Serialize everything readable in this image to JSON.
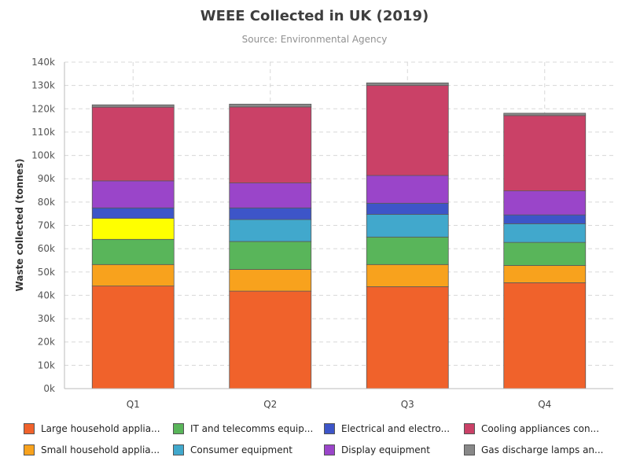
{
  "chart_data": {
    "type": "bar",
    "stacked": true,
    "title": "WEEE Collected in UK (2019)",
    "subtitle": "Source: Environmental Agency",
    "xlabel": "",
    "ylabel": "Waste collected (tonnes)",
    "ylim": [
      0,
      140000
    ],
    "yticks": [
      "0k",
      "10k",
      "20k",
      "30k",
      "40k",
      "50k",
      "60k",
      "70k",
      "80k",
      "90k",
      "100k",
      "110k",
      "120k",
      "130k",
      "140k"
    ],
    "grid": true,
    "legend_position": "bottom",
    "categories": [
      "Q1",
      "Q2",
      "Q3",
      "Q4"
    ],
    "series": [
      {
        "name": "Large household applia...",
        "color": "#f0622b",
        "values": [
          44000,
          41800,
          43700,
          45400
        ]
      },
      {
        "name": "Small household applia...",
        "color": "#f8a21d",
        "values": [
          9200,
          9300,
          9500,
          7400
        ]
      },
      {
        "name": "IT and telecomms equip...",
        "color": "#59b55a",
        "values": [
          10800,
          12000,
          11800,
          9900
        ]
      },
      {
        "name": "Consumer equipment",
        "color": "#41a8cc",
        "values": [
          0,
          9400,
          9700,
          8000
        ]
      },
      {
        "name": "Electrical and electro...",
        "color": "#ffff00",
        "values": [
          9000,
          0,
          0,
          0
        ]
      },
      {
        "name": "Electrical and electro...",
        "color": "#3d55c8",
        "values": [
          4500,
          5000,
          4800,
          3800
        ]
      },
      {
        "name": "Display equipment",
        "color": "#9a45c9",
        "values": [
          11600,
          10700,
          11900,
          10300
        ]
      },
      {
        "name": "Cooling appliances con...",
        "color": "#ca4167",
        "values": [
          31600,
          32600,
          38600,
          32300
        ]
      },
      {
        "name": "Gas discharge lamps an...",
        "color": "#888888",
        "values": [
          1000,
          1200,
          1100,
          1000
        ]
      }
    ],
    "legend": [
      {
        "label": "Large household applia...",
        "color": "#f0622b"
      },
      {
        "label": "IT and telecomms equip...",
        "color": "#59b55a"
      },
      {
        "label": "Electrical and electro...",
        "color": "#3d55c8"
      },
      {
        "label": "Cooling appliances con...",
        "color": "#ca4167"
      },
      {
        "label": "Small household applia...",
        "color": "#f8a21d"
      },
      {
        "label": "Consumer equipment",
        "color": "#41a8cc"
      },
      {
        "label": "Display equipment",
        "color": "#9a45c9"
      },
      {
        "label": "Gas discharge lamps an...",
        "color": "#888888"
      }
    ]
  }
}
